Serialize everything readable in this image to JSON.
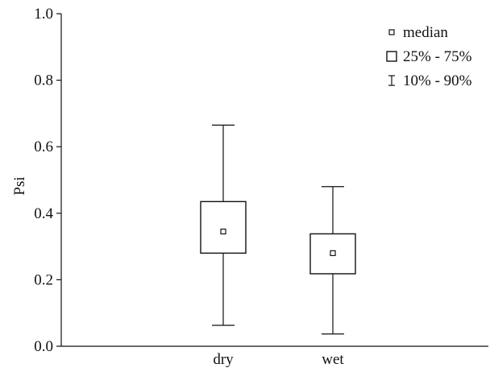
{
  "chart_data": {
    "type": "boxplot",
    "ylabel": "Psi",
    "xlabel": "",
    "ylim": [
      0.0,
      1.0
    ],
    "yticks": [
      "0.0",
      "0.2",
      "0.4",
      "0.6",
      "0.8",
      "1.0"
    ],
    "categories": [
      "dry",
      "wet"
    ],
    "series": [
      {
        "category": "dry",
        "median": 0.345,
        "q25": 0.28,
        "q75": 0.435,
        "p10": 0.063,
        "p90": 0.665
      },
      {
        "category": "wet",
        "median": 0.28,
        "q25": 0.218,
        "q75": 0.338,
        "p10": 0.037,
        "p90": 0.48
      }
    ],
    "legend": {
      "placement": "top-right",
      "items": [
        {
          "symbol": "median-marker",
          "label": "median"
        },
        {
          "symbol": "box",
          "label": "25% - 75%"
        },
        {
          "symbol": "whisker",
          "label": "10% - 90%"
        }
      ]
    },
    "colors": {
      "line": "#111111",
      "fill": "#ffffff"
    }
  }
}
